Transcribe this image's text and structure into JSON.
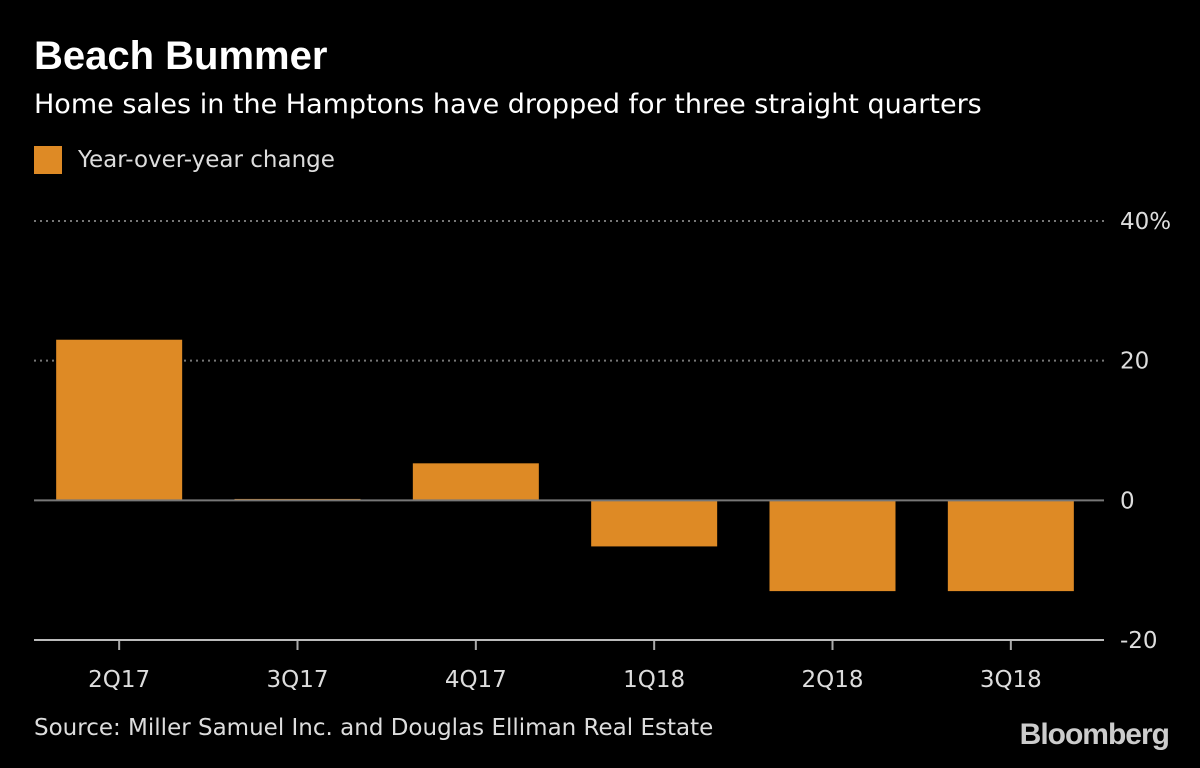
{
  "chart_data": {
    "type": "bar",
    "title": "Beach Bummer",
    "subtitle": "Home sales in the Hamptons have dropped for three straight quarters",
    "categories": [
      "2Q17",
      "3Q17",
      "4Q17",
      "1Q18",
      "2Q18",
      "3Q18"
    ],
    "series": [
      {
        "name": "Year-over-year change",
        "values": [
          23.0,
          0.2,
          5.3,
          -6.6,
          -13.0,
          -13.0
        ]
      }
    ],
    "ylim": [
      -20,
      40
    ],
    "yticks": [
      40,
      20,
      0,
      -20
    ],
    "ytick_labels": [
      "40%",
      "20",
      "0",
      "-20"
    ],
    "xlabel": "",
    "ylabel": "",
    "grid": true,
    "legend_position": "top-left",
    "bar_color": "#de8a25",
    "source": "Source: Miller Samuel Inc. and Douglas Elliman Real Estate",
    "brand": "Bloomberg"
  }
}
